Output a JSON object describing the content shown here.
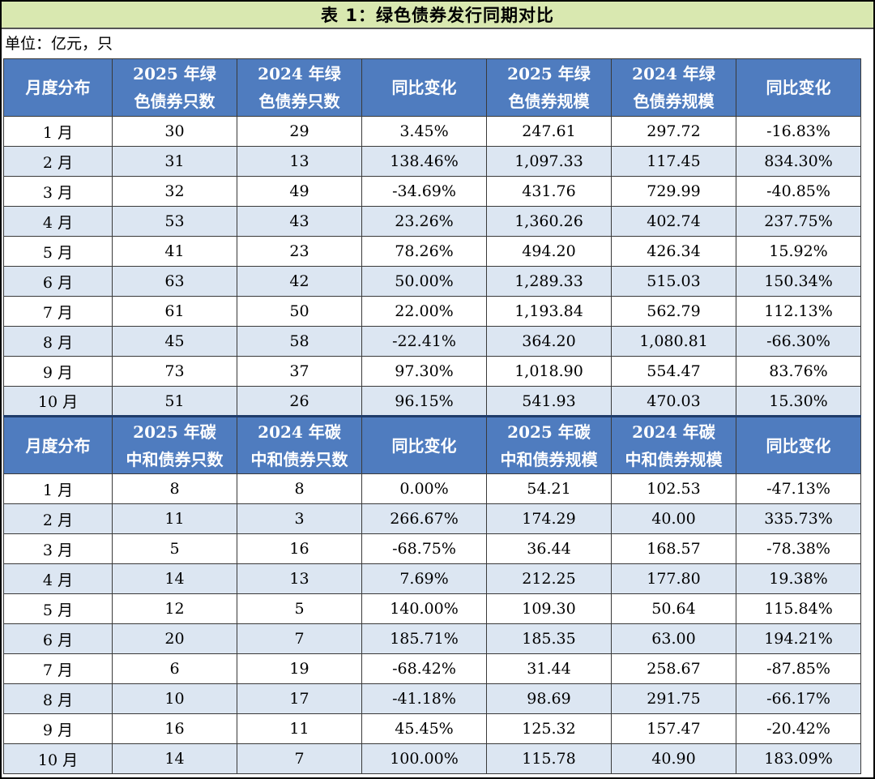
{
  "title": "表 1：绿色债券发行同期对比",
  "unit": "单位：亿元，只",
  "sections": [
    {
      "headers": [
        "月度分布",
        "2025 年绿色债券只数",
        "2024 年绿色债券只数",
        "同比变化",
        "2025 年绿色债券规模",
        "2024 年绿色债券规模",
        "同比变化"
      ],
      "rows": [
        [
          "1 月",
          "30",
          "29",
          "3.45%",
          "247.61",
          "297.72",
          "-16.83%"
        ],
        [
          "2 月",
          "31",
          "13",
          "138.46%",
          "1,097.33",
          "117.45",
          "834.30%"
        ],
        [
          "3 月",
          "32",
          "49",
          "-34.69%",
          "431.76",
          "729.99",
          "-40.85%"
        ],
        [
          "4 月",
          "53",
          "43",
          "23.26%",
          "1,360.26",
          "402.74",
          "237.75%"
        ],
        [
          "5 月",
          "41",
          "23",
          "78.26%",
          "494.20",
          "426.34",
          "15.92%"
        ],
        [
          "6 月",
          "63",
          "42",
          "50.00%",
          "1,289.33",
          "515.03",
          "150.34%"
        ],
        [
          "7 月",
          "61",
          "50",
          "22.00%",
          "1,193.84",
          "562.79",
          "112.13%"
        ],
        [
          "8 月",
          "45",
          "58",
          "-22.41%",
          "364.20",
          "1,080.81",
          "-66.30%"
        ],
        [
          "9 月",
          "73",
          "37",
          "97.30%",
          "1,018.90",
          "554.47",
          "83.76%"
        ],
        [
          "10 月",
          "51",
          "26",
          "96.15%",
          "541.93",
          "470.03",
          "15.30%"
        ]
      ]
    },
    {
      "headers": [
        "月度分布",
        "2025 年碳中和债券只数",
        "2024 年碳中和债券只数",
        "同比变化",
        "2025 年碳中和债券规模",
        "2024 年碳中和债券规模",
        "同比变化"
      ],
      "rows": [
        [
          "1 月",
          "8",
          "8",
          "0.00%",
          "54.21",
          "102.53",
          "-47.13%"
        ],
        [
          "2 月",
          "11",
          "3",
          "266.67%",
          "174.29",
          "40.00",
          "335.73%"
        ],
        [
          "3 月",
          "5",
          "16",
          "-68.75%",
          "36.44",
          "168.57",
          "-78.38%"
        ],
        [
          "4 月",
          "14",
          "13",
          "7.69%",
          "212.25",
          "177.80",
          "19.38%"
        ],
        [
          "5 月",
          "12",
          "5",
          "140.00%",
          "109.30",
          "50.64",
          "115.84%"
        ],
        [
          "6 月",
          "20",
          "7",
          "185.71%",
          "185.35",
          "63.00",
          "194.21%"
        ],
        [
          "7 月",
          "6",
          "19",
          "-68.42%",
          "31.44",
          "258.67",
          "-87.85%"
        ],
        [
          "8 月",
          "10",
          "17",
          "-41.18%",
          "98.69",
          "291.75",
          "-66.17%"
        ],
        [
          "9 月",
          "16",
          "11",
          "45.45%",
          "125.32",
          "157.47",
          "-20.42%"
        ],
        [
          "10 月",
          "14",
          "7",
          "100.00%",
          "115.78",
          "40.90",
          "183.09%"
        ]
      ]
    }
  ],
  "colors": {
    "title_bg": "#d9e8b0",
    "header_bg": "#4f7cbf",
    "alt_row_bg": "#dce6f2"
  }
}
